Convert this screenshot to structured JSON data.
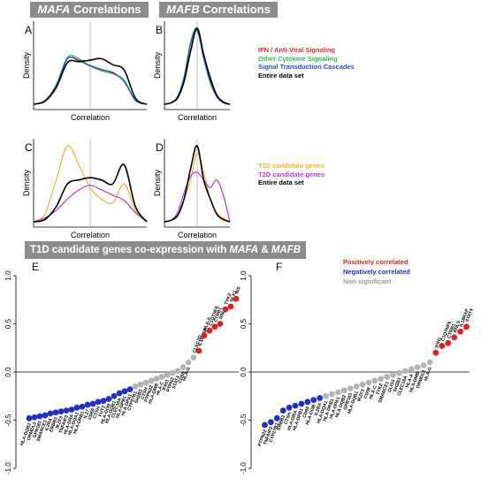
{
  "headers": {
    "mafa": {
      "gene": "MAFA",
      "suffix": " Correlations"
    },
    "mafb": {
      "gene": "MAFB",
      "suffix": " Correlations"
    },
    "bottom": {
      "prefix": "T1D candidate genes co-expression with ",
      "gene1": "MAFA",
      "amp": " & ",
      "gene2": "MAFB"
    }
  },
  "legend_top": [
    {
      "label": "IFN / Anti-Viral Signaling",
      "color": "#e3262b"
    },
    {
      "label": "Other Cytokine Signaling",
      "color": "#2fbf4a"
    },
    {
      "label": "Signal Transduction Cascades",
      "color": "#1f4fd6"
    },
    {
      "label": "Entire data set",
      "color": "#000000"
    }
  ],
  "legend_mid": [
    {
      "label": "T1D candidate genes",
      "color": "#f0b42a"
    },
    {
      "label": "T2D candidate genes",
      "color": "#b23fd1"
    },
    {
      "label": "Entire data set",
      "color": "#000000"
    }
  ],
  "legend_bottom": [
    {
      "label": "Positively correlated",
      "color": "#e0201c"
    },
    {
      "label": "Negatively correlated",
      "color": "#1f2fc9"
    },
    {
      "label": "Non-significant",
      "color": "#9a9a9a"
    }
  ],
  "chart_data": [
    {
      "panel": "A",
      "type": "line",
      "xlabel": "Correlation",
      "ylabel": "Density",
      "x": [
        -1.0,
        -0.8,
        -0.6,
        -0.4,
        -0.2,
        0.0,
        0.2,
        0.4,
        0.6,
        0.8,
        1.0
      ],
      "series": [
        {
          "color": "#e3262b",
          "values": [
            0.0,
            0.05,
            0.25,
            0.6,
            0.58,
            0.5,
            0.45,
            0.42,
            0.3,
            0.05,
            0.0
          ]
        },
        {
          "color": "#2fbf4a",
          "values": [
            0.0,
            0.05,
            0.26,
            0.62,
            0.6,
            0.5,
            0.44,
            0.4,
            0.32,
            0.05,
            0.0
          ]
        },
        {
          "color": "#1f4fd6",
          "values": [
            0.0,
            0.04,
            0.24,
            0.6,
            0.57,
            0.51,
            0.46,
            0.41,
            0.3,
            0.05,
            0.0
          ]
        },
        {
          "color": "#000000",
          "values": [
            0.0,
            0.04,
            0.22,
            0.55,
            0.56,
            0.58,
            0.6,
            0.52,
            0.45,
            0.08,
            0.0
          ]
        }
      ]
    },
    {
      "panel": "B",
      "type": "line",
      "xlabel": "Correlation",
      "ylabel": "Density",
      "x": [
        -1.0,
        -0.8,
        -0.6,
        -0.4,
        -0.2,
        0.0,
        0.2,
        0.4,
        0.6,
        0.8,
        1.0
      ],
      "series": [
        {
          "color": "#e3262b",
          "values": [
            0.0,
            0.02,
            0.1,
            0.35,
            0.8,
            0.98,
            0.62,
            0.3,
            0.1,
            0.02,
            0.0
          ]
        },
        {
          "color": "#2fbf4a",
          "values": [
            0.0,
            0.02,
            0.1,
            0.36,
            0.82,
            1.0,
            0.6,
            0.28,
            0.1,
            0.02,
            0.0
          ]
        },
        {
          "color": "#1f4fd6",
          "values": [
            0.0,
            0.02,
            0.1,
            0.35,
            0.8,
            0.97,
            0.61,
            0.3,
            0.1,
            0.02,
            0.0
          ]
        },
        {
          "color": "#000000",
          "values": [
            0.0,
            0.02,
            0.08,
            0.3,
            0.7,
            1.0,
            0.65,
            0.35,
            0.12,
            0.03,
            0.0
          ]
        }
      ]
    },
    {
      "panel": "C",
      "type": "line",
      "xlabel": "Correlation",
      "ylabel": "Density",
      "x": [
        -1.0,
        -0.8,
        -0.6,
        -0.4,
        -0.2,
        0.0,
        0.2,
        0.4,
        0.6,
        0.8,
        1.0
      ],
      "series": [
        {
          "color": "#f0b42a",
          "values": [
            0.0,
            0.1,
            0.55,
            1.0,
            0.75,
            0.45,
            0.3,
            0.25,
            0.5,
            0.15,
            0.0
          ]
        },
        {
          "color": "#b23fd1",
          "values": [
            0.0,
            0.05,
            0.15,
            0.3,
            0.42,
            0.48,
            0.42,
            0.35,
            0.28,
            0.12,
            0.0
          ]
        },
        {
          "color": "#000000",
          "values": [
            0.0,
            0.03,
            0.2,
            0.5,
            0.55,
            0.58,
            0.55,
            0.5,
            0.75,
            0.2,
            0.0
          ]
        }
      ]
    },
    {
      "panel": "D",
      "type": "line",
      "xlabel": "Correlation",
      "ylabel": "Density",
      "x": [
        -1.0,
        -0.8,
        -0.6,
        -0.4,
        -0.2,
        0.0,
        0.2,
        0.4,
        0.6,
        0.8,
        1.0
      ],
      "series": [
        {
          "color": "#f0b42a",
          "values": [
            0.0,
            0.02,
            0.1,
            0.3,
            0.55,
            0.9,
            0.65,
            0.3,
            0.12,
            0.05,
            0.0
          ]
        },
        {
          "color": "#b23fd1",
          "values": [
            0.0,
            0.02,
            0.12,
            0.38,
            0.6,
            0.65,
            0.55,
            0.45,
            0.55,
            0.35,
            0.0
          ]
        },
        {
          "color": "#000000",
          "values": [
            0.0,
            0.02,
            0.08,
            0.3,
            0.7,
            1.0,
            0.55,
            0.3,
            0.1,
            0.03,
            0.0
          ]
        }
      ]
    },
    {
      "panel": "E",
      "type": "scatter",
      "ylim": [
        -1.0,
        1.0
      ],
      "yticks": [
        "-1.0",
        "-0.5",
        "0.0",
        "0.5",
        "1.0"
      ],
      "points": [
        {
          "label": "HLA-DQB2",
          "value": -0.48,
          "status": "neg"
        },
        {
          "label": "ORMDL3",
          "value": -0.47,
          "status": "neg"
        },
        {
          "label": "GPR183",
          "value": -0.46,
          "status": "neg"
        },
        {
          "label": "SMARCE1",
          "value": -0.45,
          "status": "neg"
        },
        {
          "label": "IL2RA",
          "value": -0.43,
          "status": "neg"
        },
        {
          "label": "ERBB3",
          "value": -0.42,
          "status": "neg"
        },
        {
          "label": "IKZF3",
          "value": -0.41,
          "status": "neg"
        },
        {
          "label": "TNFAIP3",
          "value": -0.4,
          "status": "neg"
        },
        {
          "label": "HLA-DRA",
          "value": -0.39,
          "status": "neg"
        },
        {
          "label": "HLA-DQA1",
          "value": -0.37,
          "status": "neg"
        },
        {
          "label": "HLA-DRB1",
          "value": -0.36,
          "status": "neg"
        },
        {
          "label": "IL27",
          "value": -0.34,
          "status": "neg"
        },
        {
          "label": "CD69",
          "value": -0.33,
          "status": "neg"
        },
        {
          "label": "CTSH",
          "value": -0.31,
          "status": "neg"
        },
        {
          "label": "FUT2",
          "value": -0.3,
          "status": "neg"
        },
        {
          "label": "HLA-DOB",
          "value": -0.28,
          "status": "neg"
        },
        {
          "label": "HLA-DQB1",
          "value": -0.25,
          "status": "neg"
        },
        {
          "label": "CLEC16A",
          "value": -0.22,
          "status": "neg"
        },
        {
          "label": "HLA-DPB1",
          "value": -0.2,
          "status": "neg"
        },
        {
          "label": "HLA-DPA1",
          "value": -0.18,
          "status": "neg"
        },
        {
          "label": "CYP27B1",
          "value": -0.15,
          "status": "nonsig"
        },
        {
          "label": "SH2B3",
          "value": -0.13,
          "status": "nonsig"
        },
        {
          "label": "CTSH",
          "value": -0.11,
          "status": "nonsig"
        },
        {
          "label": "PTPN22",
          "value": -0.09,
          "status": "nonsig"
        },
        {
          "label": "HLA-DMB",
          "value": -0.07,
          "status": "nonsig"
        },
        {
          "label": "HLA-C",
          "value": -0.05,
          "status": "nonsig"
        },
        {
          "label": "IFIH1",
          "value": -0.03,
          "status": "nonsig"
        },
        {
          "label": "PTPN2",
          "value": -0.01,
          "status": "nonsig"
        },
        {
          "label": "STAT4",
          "value": 0.01,
          "status": "nonsig"
        },
        {
          "label": "CD58",
          "value": 0.05,
          "status": "nonsig"
        },
        {
          "label": "HLA-G",
          "value": 0.1,
          "status": "nonsig"
        },
        {
          "label": "CLEC2D",
          "value": 0.15,
          "status": "nonsig"
        },
        {
          "label": "IL18RAP",
          "value": 0.22,
          "status": "pos"
        },
        {
          "label": "HLA-A",
          "value": 0.38,
          "status": "pos"
        },
        {
          "label": "C1QTNF6",
          "value": 0.43,
          "status": "pos"
        },
        {
          "label": "CTRB1",
          "value": 0.47,
          "status": "pos"
        },
        {
          "label": "RNLS",
          "value": 0.5,
          "status": "pos"
        },
        {
          "label": "TYK2",
          "value": 0.65,
          "status": "pos"
        },
        {
          "label": "DLK1",
          "value": 0.68,
          "status": "pos"
        },
        {
          "label": "INS",
          "value": 0.76,
          "status": "pos"
        }
      ]
    },
    {
      "panel": "F",
      "type": "scatter",
      "ylim": [
        -1.0,
        1.0
      ],
      "yticks": [
        "-1.0",
        "-0.5",
        "0.0",
        "0.5",
        "1.0"
      ],
      "points": [
        {
          "label": "PTPN22",
          "value": -0.55,
          "status": "neg"
        },
        {
          "label": "TNFAIP3",
          "value": -0.52,
          "status": "neg"
        },
        {
          "label": "CYP27B1",
          "value": -0.48,
          "status": "neg"
        },
        {
          "label": "ERBB3",
          "value": -0.4,
          "status": "neg"
        },
        {
          "label": "CTSH",
          "value": -0.37,
          "status": "neg"
        },
        {
          "label": "HLA-DRA",
          "value": -0.35,
          "status": "neg"
        },
        {
          "label": "HLA-DPB1",
          "value": -0.33,
          "status": "neg"
        },
        {
          "label": "CD69",
          "value": -0.31,
          "status": "neg"
        },
        {
          "label": "HLA-DOB",
          "value": -0.29,
          "status": "neg"
        },
        {
          "label": "IL2RA",
          "value": -0.27,
          "status": "neg"
        },
        {
          "label": "HLA-DQA1",
          "value": -0.25,
          "status": "nonsig"
        },
        {
          "label": "HLA-DRB1",
          "value": -0.23,
          "status": "nonsig"
        },
        {
          "label": "HLA-DPA1",
          "value": -0.21,
          "status": "nonsig"
        },
        {
          "label": "HLA-DQB2",
          "value": -0.19,
          "status": "nonsig"
        },
        {
          "label": "GPR183",
          "value": -0.17,
          "status": "nonsig"
        },
        {
          "label": "HLA-DQB1",
          "value": -0.15,
          "status": "nonsig"
        },
        {
          "label": "IKZF3",
          "value": -0.13,
          "status": "nonsig"
        },
        {
          "label": "CD58",
          "value": -0.11,
          "status": "nonsig"
        },
        {
          "label": "HLA-C",
          "value": -0.09,
          "status": "nonsig"
        },
        {
          "label": "TYK2",
          "value": -0.07,
          "status": "nonsig"
        },
        {
          "label": "SMARCE1",
          "value": -0.05,
          "status": "nonsig"
        },
        {
          "label": "GLIS3",
          "value": -0.03,
          "status": "nonsig"
        },
        {
          "label": "SH2B3",
          "value": -0.01,
          "status": "nonsig"
        },
        {
          "label": "CLEC16A",
          "value": 0.01,
          "status": "nonsig"
        },
        {
          "label": "HLA-A",
          "value": 0.03,
          "status": "nonsig"
        },
        {
          "label": "HLA-DMB",
          "value": 0.05,
          "status": "nonsig"
        },
        {
          "label": "ORMDL3",
          "value": 0.07,
          "status": "nonsig"
        },
        {
          "label": "HLA-G",
          "value": 0.1,
          "status": "nonsig"
        },
        {
          "label": "IFIH1",
          "value": 0.2,
          "status": "pos"
        },
        {
          "label": "C1QTNF6",
          "value": 0.27,
          "status": "pos"
        },
        {
          "label": "CTRB1",
          "value": 0.3,
          "status": "pos"
        },
        {
          "label": "RNLS",
          "value": 0.36,
          "status": "pos"
        },
        {
          "label": "IL18RAP",
          "value": 0.42,
          "status": "pos"
        },
        {
          "label": "STAT4",
          "value": 0.47,
          "status": "pos"
        }
      ]
    }
  ]
}
